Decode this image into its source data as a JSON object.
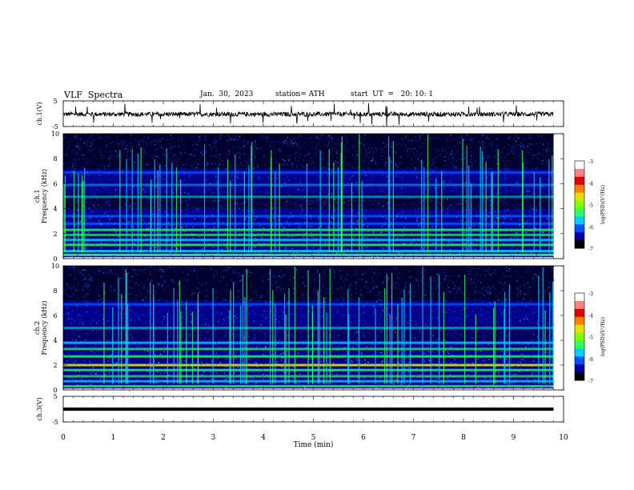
{
  "header": {
    "title": "VLF  Spectra",
    "date": "Jan.  30,  2023",
    "station": "station= ATH",
    "start_ut": "start  UT  =   20: 10: 1"
  },
  "chart_data": [
    {
      "type": "line",
      "panel": "ch1-waveform",
      "ylabel": "ch.1(V)",
      "yticks": [
        "5",
        "-5"
      ],
      "ylim": [
        -5,
        5
      ],
      "x": [
        0,
        10
      ],
      "description_values": "noise waveform centered near 0 V with spikes"
    },
    {
      "type": "heatmap",
      "panel": "ch1-spectrogram",
      "ylabel_line1": "ch.1",
      "ylabel_line2": "Frequency  (kHz)",
      "yticks": [
        "0",
        "2",
        "4",
        "6",
        "8",
        "10"
      ],
      "ylim": [
        0,
        10
      ],
      "xlim": [
        0,
        9.8
      ]
    },
    {
      "type": "heatmap",
      "panel": "ch2-spectrogram",
      "ylabel_line1": "ch.2",
      "ylabel_line2": "Frequency  (kHz)",
      "yticks": [
        "0",
        "2",
        "4",
        "6",
        "8",
        "10"
      ],
      "ylim": [
        0,
        10
      ],
      "xlim": [
        0,
        9.8
      ]
    },
    {
      "type": "line",
      "panel": "ch3-waveform",
      "ylabel": "ch.3(V)",
      "yticks": [
        "5",
        "-5"
      ],
      "ylim": [
        -5,
        5
      ],
      "flat_level": 0
    }
  ],
  "x_axis": {
    "xlabel": "Time  (min)",
    "ticks": [
      "0",
      "1",
      "2",
      "3",
      "4",
      "5",
      "6",
      "7",
      "8",
      "9",
      "10"
    ],
    "xlim": [
      0,
      10
    ]
  },
  "colorbar": {
    "label": "log(PSD)(V²/Hz)",
    "ticks": [
      "-3",
      "-4",
      "-5",
      "-6",
      "-7"
    ],
    "range": [
      -7,
      -3
    ]
  },
  "colors": {
    "bg": "#000020",
    "dark_blue": "#00008c",
    "blue": "#0050ff",
    "cyan": "#00d0ff",
    "green": "#30ff60",
    "yellow": "#e8e000",
    "red": "#e00000",
    "white": "#ffffff"
  }
}
